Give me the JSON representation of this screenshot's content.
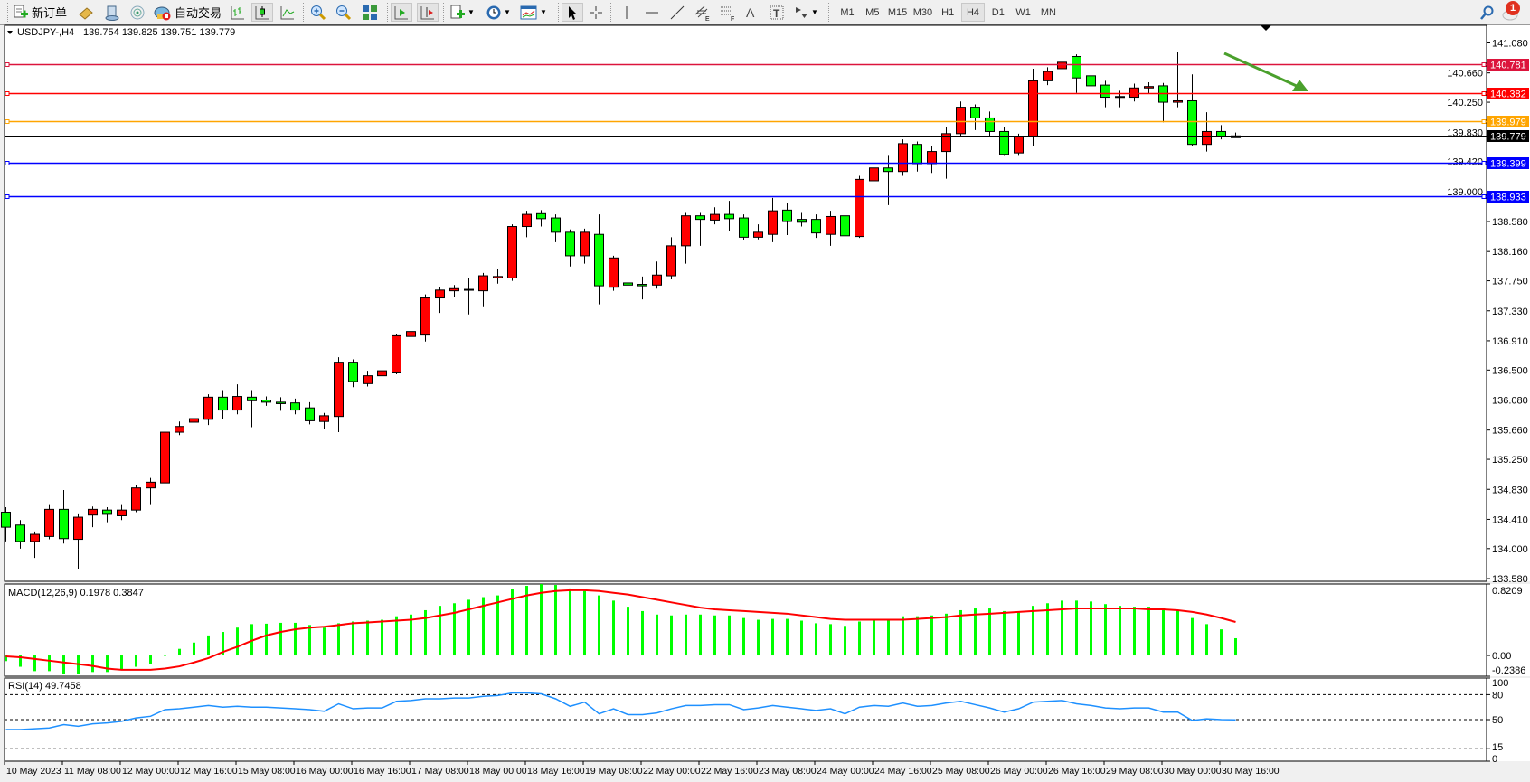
{
  "toolbar": {
    "new_order": "新订单",
    "auto_trading": "自动交易",
    "timeframes": [
      "M1",
      "M5",
      "M15",
      "M30",
      "H1",
      "H4",
      "D1",
      "W1",
      "MN"
    ],
    "active_timeframe": "H4",
    "notification_count": "1",
    "icons": [
      "new-order-icon",
      "history-center-icon",
      "contact-icon",
      "signals-icon",
      "auto-trading-icon",
      "bar-chart-icon",
      "candlestick-icon",
      "line-chart-icon",
      "zoom-in-icon",
      "zoom-out-icon",
      "tile-windows-icon",
      "auto-scroll-icon",
      "chart-shift-icon",
      "indicators-icon",
      "periods-icon",
      "templates-icon",
      "cursor-icon",
      "crosshair-icon",
      "vertical-line-icon",
      "horizontal-line-icon",
      "trendline-icon",
      "equidistant-channel-icon",
      "fibonacci-icon",
      "text-icon",
      "text-label-icon",
      "arrows-icon",
      "search-icon",
      "chat-icon"
    ]
  },
  "chart": {
    "symbol_label": "USDJPY-,H4",
    "ohlc_label": "139.754 139.825 139.751 139.779",
    "macd_label": "MACD(12,26,9) 0.1978 0.3847",
    "rsi_label": "RSI(14) 49.7458"
  },
  "chart_data": [
    {
      "type": "candlestick",
      "symbol": "USDJPY-",
      "timeframe": "H4",
      "colors": {
        "bull": "#ff0000",
        "bear": "#00ff00",
        "wick": "#000000"
      },
      "ylim": [
        133.54,
        141.33
      ],
      "y_ticks": [
        "141.080",
        "140.660",
        "140.250",
        "139.830",
        "139.420",
        "139.000",
        "138.580",
        "138.160",
        "137.750",
        "137.330",
        "136.910",
        "136.500",
        "136.080",
        "135.660",
        "135.250",
        "134.830",
        "134.410",
        "134.000",
        "133.580"
      ],
      "x_tick_labels": [
        "10 May 2023",
        "11 May 08:00",
        "12 May 00:00",
        "12 May 16:00",
        "15 May 08:00",
        "16 May 00:00",
        "16 May 16:00",
        "17 May 08:00",
        "18 May 00:00",
        "18 May 16:00",
        "19 May 08:00",
        "22 May 00:00",
        "22 May 16:00",
        "23 May 08:00",
        "24 May 00:00",
        "24 May 16:00",
        "25 May 08:00",
        "26 May 00:00",
        "26 May 16:00",
        "29 May 08:00",
        "30 May 00:00",
        "30 May 16:00"
      ],
      "x_tick_every_bars": 4,
      "candles_ohlc": [
        [
          134.51,
          134.58,
          134.1,
          134.3
        ],
        [
          134.33,
          134.4,
          134.0,
          134.1
        ],
        [
          134.1,
          134.24,
          133.87,
          134.2
        ],
        [
          134.17,
          134.61,
          134.13,
          134.55
        ],
        [
          134.55,
          134.82,
          134.07,
          134.14
        ],
        [
          134.13,
          134.48,
          133.72,
          134.44
        ],
        [
          134.47,
          134.59,
          134.3,
          134.55
        ],
        [
          134.54,
          134.58,
          134.37,
          134.48
        ],
        [
          134.46,
          134.61,
          134.4,
          134.54
        ],
        [
          134.54,
          134.89,
          134.51,
          134.85
        ],
        [
          134.85,
          134.99,
          134.61,
          134.93
        ],
        [
          134.92,
          135.67,
          134.71,
          135.63
        ],
        [
          135.63,
          135.78,
          135.59,
          135.71
        ],
        [
          135.77,
          135.89,
          135.73,
          135.82
        ],
        [
          135.81,
          136.16,
          135.73,
          136.12
        ],
        [
          136.12,
          136.22,
          135.81,
          135.94
        ],
        [
          135.94,
          136.3,
          135.88,
          136.13
        ],
        [
          136.12,
          136.22,
          135.7,
          136.07
        ],
        [
          136.08,
          136.13,
          136.0,
          136.05
        ],
        [
          136.05,
          136.12,
          135.93,
          136.03
        ],
        [
          136.04,
          136.1,
          135.88,
          135.94
        ],
        [
          135.97,
          136.05,
          135.74,
          135.79
        ],
        [
          135.78,
          135.9,
          135.67,
          135.86
        ],
        [
          135.85,
          136.68,
          135.63,
          136.61
        ],
        [
          136.61,
          136.65,
          136.26,
          136.34
        ],
        [
          136.31,
          136.49,
          136.27,
          136.42
        ],
        [
          136.42,
          136.54,
          136.35,
          136.49
        ],
        [
          136.46,
          137.01,
          136.44,
          136.98
        ],
        [
          136.97,
          137.17,
          136.82,
          137.04
        ],
        [
          136.99,
          137.56,
          136.9,
          137.51
        ],
        [
          137.51,
          137.66,
          137.3,
          137.62
        ],
        [
          137.61,
          137.69,
          137.53,
          137.64
        ],
        [
          137.62,
          137.79,
          137.28,
          137.63
        ],
        [
          137.61,
          137.86,
          137.38,
          137.82
        ],
        [
          137.79,
          137.91,
          137.71,
          137.81
        ],
        [
          137.79,
          138.54,
          137.75,
          138.51
        ],
        [
          138.51,
          138.73,
          138.36,
          138.68
        ],
        [
          138.69,
          138.74,
          138.51,
          138.62
        ],
        [
          138.63,
          138.68,
          138.29,
          138.43
        ],
        [
          138.43,
          138.47,
          137.95,
          138.1
        ],
        [
          138.1,
          138.48,
          137.99,
          138.43
        ],
        [
          138.4,
          138.68,
          137.42,
          137.68
        ],
        [
          137.66,
          138.1,
          137.61,
          138.07
        ],
        [
          137.72,
          137.81,
          137.58,
          137.69
        ],
        [
          137.7,
          137.81,
          137.49,
          137.68
        ],
        [
          137.69,
          138.02,
          137.64,
          137.83
        ],
        [
          137.82,
          138.36,
          137.77,
          138.24
        ],
        [
          138.24,
          138.7,
          137.99,
          138.66
        ],
        [
          138.66,
          138.7,
          138.24,
          138.61
        ],
        [
          138.6,
          138.78,
          138.54,
          138.68
        ],
        [
          138.68,
          138.87,
          138.44,
          138.62
        ],
        [
          138.63,
          138.68,
          138.32,
          138.36
        ],
        [
          138.36,
          138.54,
          138.33,
          138.43
        ],
        [
          138.4,
          138.91,
          138.29,
          138.73
        ],
        [
          138.74,
          138.84,
          138.39,
          138.58
        ],
        [
          138.61,
          138.7,
          138.51,
          138.57
        ],
        [
          138.61,
          138.68,
          138.35,
          138.42
        ],
        [
          138.4,
          138.73,
          138.24,
          138.65
        ],
        [
          138.66,
          138.73,
          138.33,
          138.38
        ],
        [
          138.37,
          139.22,
          138.35,
          139.17
        ],
        [
          139.15,
          139.39,
          139.11,
          139.33
        ],
        [
          139.33,
          139.5,
          138.81,
          139.28
        ],
        [
          139.28,
          139.73,
          139.22,
          139.67
        ],
        [
          139.66,
          139.7,
          139.28,
          139.39
        ],
        [
          139.39,
          139.63,
          139.26,
          139.56
        ],
        [
          139.56,
          139.9,
          139.18,
          139.81
        ],
        [
          139.81,
          140.26,
          139.77,
          140.18
        ],
        [
          140.18,
          140.22,
          139.86,
          140.03
        ],
        [
          140.03,
          140.12,
          139.77,
          139.84
        ],
        [
          139.84,
          139.9,
          139.5,
          139.52
        ],
        [
          139.54,
          139.81,
          139.5,
          139.77
        ],
        [
          139.77,
          140.72,
          139.63,
          140.55
        ],
        [
          140.55,
          140.74,
          140.49,
          140.68
        ],
        [
          140.72,
          140.89,
          140.7,
          140.81
        ],
        [
          140.89,
          140.92,
          140.38,
          140.59
        ],
        [
          140.62,
          140.67,
          140.22,
          140.48
        ],
        [
          140.49,
          140.55,
          140.18,
          140.32
        ],
        [
          140.33,
          140.41,
          140.18,
          140.32
        ],
        [
          140.32,
          140.51,
          140.26,
          140.45
        ],
        [
          140.45,
          140.53,
          140.37,
          140.47
        ],
        [
          140.48,
          140.52,
          139.97,
          140.25
        ],
        [
          140.25,
          140.96,
          140.18,
          140.27
        ],
        [
          140.27,
          140.64,
          139.63,
          139.66
        ],
        [
          139.66,
          140.11,
          139.56,
          139.84
        ],
        [
          139.84,
          139.93,
          139.73,
          139.77
        ],
        [
          139.754,
          139.825,
          139.751,
          139.779
        ]
      ],
      "horizontal_lines": [
        {
          "price": "140.781",
          "color": "#dc143c"
        },
        {
          "price": "140.382",
          "color": "#ff0000"
        },
        {
          "price": "139.979",
          "color": "#ffa500"
        },
        {
          "price": "139.399",
          "color": "#0000ff"
        },
        {
          "price": "138.933",
          "color": "#0000ff"
        }
      ],
      "current_price": {
        "price": "139.779",
        "color": "#000000"
      },
      "annotation_arrow_color": "#4aa02c"
    },
    {
      "type": "bar",
      "indicator": "MACD(12,26,9)",
      "ylim": [
        -0.2386,
        0.8209
      ],
      "y_ticks": [
        "0.8209",
        "0.00",
        "-0.2386"
      ],
      "histogram_color": "#00ff00",
      "signal_color": "#ff0000",
      "histogram": [
        -0.065,
        -0.13,
        -0.18,
        -0.18,
        -0.21,
        -0.21,
        -0.19,
        -0.19,
        -0.17,
        -0.13,
        -0.095,
        0.0,
        0.076,
        0.148,
        0.23,
        0.27,
        0.32,
        0.36,
        0.365,
        0.375,
        0.375,
        0.35,
        0.32,
        0.37,
        0.39,
        0.4,
        0.41,
        0.45,
        0.47,
        0.52,
        0.57,
        0.6,
        0.64,
        0.67,
        0.69,
        0.76,
        0.8,
        0.82,
        0.81,
        0.77,
        0.75,
        0.69,
        0.63,
        0.56,
        0.51,
        0.47,
        0.46,
        0.47,
        0.47,
        0.46,
        0.46,
        0.43,
        0.41,
        0.42,
        0.42,
        0.4,
        0.37,
        0.36,
        0.34,
        0.39,
        0.41,
        0.41,
        0.45,
        0.45,
        0.46,
        0.48,
        0.52,
        0.54,
        0.54,
        0.51,
        0.5,
        0.57,
        0.6,
        0.63,
        0.63,
        0.62,
        0.59,
        0.57,
        0.56,
        0.56,
        0.54,
        0.52,
        0.43,
        0.36,
        0.3,
        0.1978
      ],
      "signal": [
        -0.01,
        -0.02,
        -0.04,
        -0.06,
        -0.08,
        -0.1,
        -0.12,
        -0.15,
        -0.165,
        -0.165,
        -0.165,
        -0.15,
        -0.125,
        -0.08,
        -0.03,
        0.04,
        0.1,
        0.17,
        0.23,
        0.27,
        0.3,
        0.32,
        0.33,
        0.35,
        0.37,
        0.38,
        0.39,
        0.4,
        0.41,
        0.43,
        0.46,
        0.49,
        0.53,
        0.57,
        0.61,
        0.65,
        0.69,
        0.72,
        0.74,
        0.75,
        0.75,
        0.74,
        0.72,
        0.7,
        0.67,
        0.64,
        0.61,
        0.58,
        0.55,
        0.53,
        0.52,
        0.51,
        0.5,
        0.49,
        0.48,
        0.46,
        0.44,
        0.42,
        0.41,
        0.41,
        0.41,
        0.41,
        0.41,
        0.42,
        0.43,
        0.44,
        0.46,
        0.47,
        0.48,
        0.49,
        0.5,
        0.51,
        0.52,
        0.53,
        0.54,
        0.54,
        0.54,
        0.54,
        0.54,
        0.53,
        0.53,
        0.52,
        0.5,
        0.47,
        0.43,
        0.3847
      ]
    },
    {
      "type": "line",
      "indicator": "RSI(14)",
      "ylim": [
        0,
        100
      ],
      "y_ticks": [
        "100",
        "80",
        "50",
        "15",
        "0"
      ],
      "levels": [
        80,
        50,
        15
      ],
      "line_color": "#1e90ff",
      "values": [
        38,
        38,
        39,
        40,
        44,
        42,
        45,
        46,
        48,
        52,
        54,
        62,
        63,
        65,
        67,
        65,
        66,
        65,
        65,
        64,
        63,
        62,
        60,
        69,
        63,
        64,
        64,
        72,
        73,
        75,
        75,
        76,
        76,
        78,
        79,
        82,
        82,
        81,
        75,
        66,
        71,
        57,
        63,
        56,
        56,
        58,
        63,
        67,
        67,
        68,
        68,
        62,
        64,
        67,
        65,
        63,
        61,
        63,
        57,
        65,
        67,
        66,
        70,
        66,
        67,
        70,
        72,
        68,
        64,
        59,
        63,
        71,
        72,
        73,
        69,
        67,
        64,
        63,
        64,
        64,
        59,
        59,
        49,
        51,
        50,
        49.7458
      ]
    }
  ]
}
